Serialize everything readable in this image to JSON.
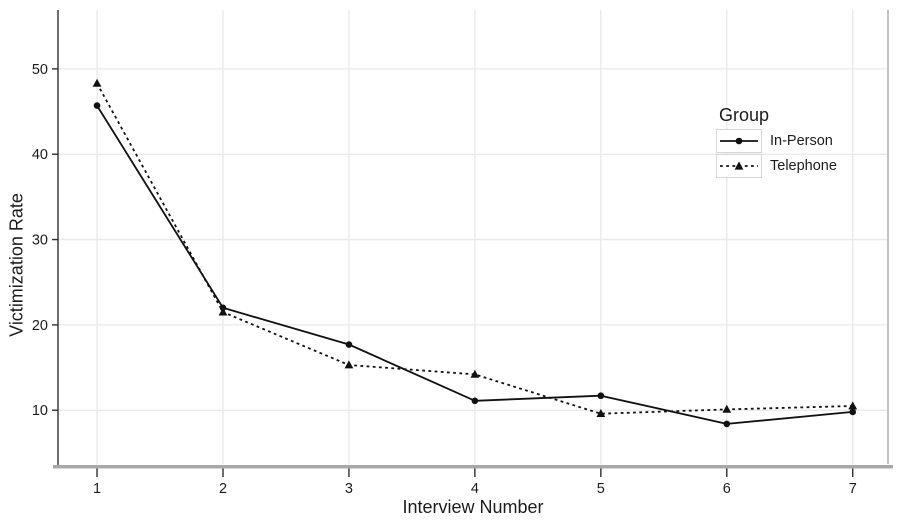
{
  "figure": {
    "background": "#ffffff"
  },
  "chart_data": {
    "type": "line",
    "title": "",
    "xlabel": "Interview Number",
    "ylabel": "Victimization Rate",
    "x": [
      1,
      2,
      3,
      4,
      5,
      6,
      7
    ],
    "x_tick_labels": [
      "1",
      "2",
      "3",
      "4",
      "5",
      "6",
      "7"
    ],
    "y_ticks": [
      10,
      20,
      30,
      40,
      50
    ],
    "y_tick_labels": [
      "10",
      "20",
      "30",
      "40",
      "50"
    ],
    "xlim": [
      0.69,
      7.28
    ],
    "ylim": [
      3.7,
      56.9
    ],
    "grid": "major-only-light",
    "legend": {
      "title": "Group",
      "position": "inside-upper-right",
      "entries": [
        "In-Person",
        "Telephone"
      ]
    },
    "series": [
      {
        "name": "In-Person",
        "marker": "circle",
        "line_style": "solid",
        "color": "#111111",
        "values": [
          45.7,
          22.0,
          17.7,
          11.1,
          11.7,
          8.4,
          9.8
        ]
      },
      {
        "name": "Telephone",
        "marker": "triangle",
        "line_style": "dashed",
        "color": "#111111",
        "values": [
          48.3,
          21.5,
          15.3,
          14.2,
          9.6,
          10.1,
          10.5
        ]
      }
    ],
    "colors": {
      "grid_line": "#e8e8e8",
      "y_axis_line": "#2f2f2f",
      "x_axis_band": "#a8a8a8",
      "panel_border_right": "#b2b2b2",
      "text": "#1c1c1c",
      "legend_key_border": "#d6d6d6"
    }
  }
}
